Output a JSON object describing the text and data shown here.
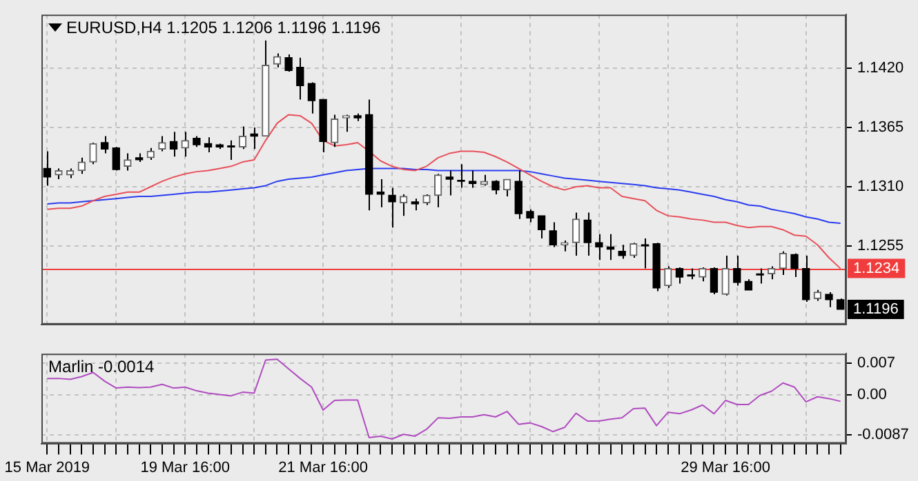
{
  "chart_data": [
    {
      "type": "candlestick",
      "title": "EURUSD,H4 1.1205 1.1206 1.1196 1.1196",
      "categories": [
        null,
        null,
        null,
        null,
        null,
        null,
        null,
        null,
        null,
        null,
        null,
        null,
        null,
        null,
        null,
        null,
        null,
        null,
        null,
        null,
        null,
        null,
        null,
        null,
        null,
        null,
        null,
        null,
        null,
        null,
        null,
        null,
        null,
        null,
        null,
        null,
        null,
        null,
        null,
        null,
        null,
        null,
        null,
        null,
        null,
        null,
        null,
        null,
        null,
        null,
        null,
        null,
        null,
        null,
        null,
        null,
        null,
        null,
        null,
        null,
        null,
        null,
        null,
        null,
        null,
        null,
        null,
        null,
        null,
        null
      ],
      "ohlc": [
        [
          1.1327,
          1.1343,
          1.1311,
          1.1319
        ],
        [
          1.1321,
          1.1327,
          1.1317,
          1.1325
        ],
        [
          1.1321,
          1.1327,
          1.1318,
          1.1325
        ],
        [
          1.1325,
          1.1337,
          1.1322,
          1.1333
        ],
        [
          1.1333,
          1.1351,
          1.1331,
          1.135
        ],
        [
          1.1351,
          1.1357,
          1.1341,
          1.1345
        ],
        [
          1.1346,
          1.1347,
          1.1325,
          1.1326
        ],
        [
          1.1329,
          1.1341,
          1.1325,
          1.1335
        ],
        [
          1.1337,
          1.1341,
          1.1333,
          1.1335
        ],
        [
          1.1337,
          1.1346,
          1.1335,
          1.1343
        ],
        [
          1.1345,
          1.1357,
          1.1343,
          1.1351
        ],
        [
          1.1352,
          1.1361,
          1.1338,
          1.1345
        ],
        [
          1.1346,
          1.1361,
          1.1338,
          1.1353
        ],
        [
          1.1355,
          1.1357,
          1.1347,
          1.1349
        ],
        [
          1.135,
          1.1356,
          1.1342,
          1.1347
        ],
        [
          1.1349,
          1.135,
          1.1345,
          1.1347
        ],
        [
          1.1348,
          1.1353,
          1.1335,
          1.1347
        ],
        [
          1.1347,
          1.1366,
          1.1345,
          1.1357
        ],
        [
          1.1359,
          1.1365,
          1.1345,
          1.1357
        ],
        [
          1.1357,
          1.1446,
          1.1357,
          1.1423
        ],
        [
          1.1424,
          1.1434,
          1.1421,
          1.1431
        ],
        [
          1.143,
          1.1433,
          1.1417,
          1.1418
        ],
        [
          1.1421,
          1.143,
          1.1391,
          1.1404
        ],
        [
          1.1406,
          1.1407,
          1.1378,
          1.139
        ],
        [
          1.1391,
          1.1391,
          1.1342,
          1.1352
        ],
        [
          1.1351,
          1.1377,
          1.1347,
          1.1373
        ],
        [
          1.1374,
          1.1377,
          1.1361,
          1.1376
        ],
        [
          1.1376,
          1.1378,
          1.1371,
          1.1374
        ],
        [
          1.1377,
          1.1391,
          1.1288,
          1.1303
        ],
        [
          1.1305,
          1.1317,
          1.1291,
          1.1303
        ],
        [
          1.1302,
          1.1309,
          1.1272,
          1.1296
        ],
        [
          1.1295,
          1.1303,
          1.1283,
          1.1301
        ],
        [
          1.1296,
          1.1299,
          1.1288,
          1.1294
        ],
        [
          1.1295,
          1.1303,
          1.1293,
          1.1302
        ],
        [
          1.1302,
          1.1322,
          1.1291,
          1.1321
        ],
        [
          1.1319,
          1.1325,
          1.1302,
          1.1317
        ],
        [
          1.1316,
          1.1331,
          1.1309,
          1.1315
        ],
        [
          1.1315,
          1.1325,
          1.1309,
          1.1313
        ],
        [
          1.1312,
          1.1321,
          1.1311,
          1.1315
        ],
        [
          1.1315,
          1.1316,
          1.1303,
          1.1307
        ],
        [
          1.1307,
          1.1317,
          1.1301,
          1.1317
        ],
        [
          1.1315,
          1.1325,
          1.128,
          1.1285
        ],
        [
          1.1287,
          1.1289,
          1.1277,
          1.1281
        ],
        [
          1.1283,
          1.1283,
          1.1262,
          1.127
        ],
        [
          1.1269,
          1.1277,
          1.1254,
          1.1256
        ],
        [
          1.1256,
          1.126,
          1.125,
          1.1258
        ],
        [
          1.1258,
          1.1286,
          1.1246,
          1.128
        ],
        [
          1.1279,
          1.1286,
          1.1246,
          1.1258
        ],
        [
          1.1258,
          1.1266,
          1.1242,
          1.1254
        ],
        [
          1.1254,
          1.1266,
          1.1242,
          1.1252
        ],
        [
          1.125,
          1.1256,
          1.1243,
          1.1246
        ],
        [
          1.1246,
          1.1258,
          1.1244,
          1.1257
        ],
        [
          1.1256,
          1.1262,
          1.1234,
          1.1255
        ],
        [
          1.1257,
          1.1258,
          1.1213,
          1.1216
        ],
        [
          1.1218,
          1.1236,
          1.1216,
          1.1234
        ],
        [
          1.1234,
          1.1235,
          1.122,
          1.1226
        ],
        [
          1.1228,
          1.1234,
          1.1224,
          1.1227
        ],
        [
          1.1226,
          1.1235,
          1.1222,
          1.1234
        ],
        [
          1.1234,
          1.1235,
          1.121,
          1.1212
        ],
        [
          1.121,
          1.1246,
          1.1209,
          1.1234
        ],
        [
          1.1234,
          1.1246,
          1.1218,
          1.1221
        ],
        [
          1.1222,
          1.1224,
          1.1214,
          1.1214
        ],
        [
          1.1229,
          1.1234,
          1.122,
          1.1228
        ],
        [
          1.1229,
          1.1236,
          1.1224,
          1.1234
        ],
        [
          1.1234,
          1.125,
          1.1228,
          1.1248
        ],
        [
          1.1247,
          1.1248,
          1.1226,
          1.1234
        ],
        [
          1.1234,
          1.1246,
          1.1203,
          1.1205
        ],
        [
          1.1206,
          1.1214,
          1.1204,
          1.1212
        ],
        [
          1.121,
          1.1212,
          1.1198,
          1.1205
        ],
        [
          1.1205,
          1.1206,
          1.1196,
          1.1196
        ]
      ],
      "series": [
        {
          "type": "line",
          "color": "#e8505a",
          "values": [
            1.1289,
            1.129,
            1.129,
            1.1292,
            1.1297,
            1.1301,
            1.1303,
            1.1305,
            1.1305,
            1.131,
            1.1315,
            1.1319,
            1.1322,
            1.1324,
            1.1325,
            1.1327,
            1.1329,
            1.1333,
            1.1335,
            1.1353,
            1.1369,
            1.1377,
            1.1376,
            1.1369,
            1.1353,
            1.1348,
            1.1349,
            1.1351,
            1.1343,
            1.1334,
            1.1329,
            1.1326,
            1.1325,
            1.1329,
            1.1337,
            1.1341,
            1.1343,
            1.1343,
            1.1342,
            1.1338,
            1.1333,
            1.1327,
            1.1321,
            1.1315,
            1.131,
            1.1307,
            1.131,
            1.1311,
            1.1309,
            1.1309,
            1.1301,
            1.1299,
            1.1297,
            1.1288,
            1.1283,
            1.1282,
            1.128,
            1.1279,
            1.1277,
            1.1277,
            1.1274,
            1.1272,
            1.1273,
            1.1273,
            1.127,
            1.1265,
            1.1264,
            1.1256,
            1.1244,
            1.1234
          ]
        },
        {
          "type": "line",
          "color": "#2a3cf0",
          "values": [
            1.1294,
            1.1295,
            1.1295,
            1.1296,
            1.1297,
            1.1298,
            1.1299,
            1.13,
            1.1301,
            1.1301,
            1.1302,
            1.1303,
            1.1304,
            1.1305,
            1.1305,
            1.1306,
            1.1307,
            1.1308,
            1.1309,
            1.1311,
            1.1315,
            1.1317,
            1.1318,
            1.1319,
            1.1321,
            1.1323,
            1.1325,
            1.1326,
            1.1327,
            1.1327,
            1.1327,
            1.1327,
            1.1326,
            1.1326,
            1.1325,
            1.1325,
            1.1325,
            1.1325,
            1.1325,
            1.1325,
            1.1325,
            1.1325,
            1.1324,
            1.1322,
            1.132,
            1.1318,
            1.1317,
            1.1316,
            1.1315,
            1.1314,
            1.1313,
            1.1312,
            1.1311,
            1.1309,
            1.1308,
            1.1307,
            1.1305,
            1.1303,
            1.1301,
            1.1298,
            1.1296,
            1.1293,
            1.1292,
            1.1289,
            1.1287,
            1.1285,
            1.1282,
            1.128,
            1.1277,
            1.1276
          ]
        }
      ],
      "ylim": [
        1.1182,
        1.147
      ],
      "yticks": [
        {
          "value": 1.1255,
          "label": "1.1255"
        },
        {
          "value": 1.131,
          "label": "1.1310"
        },
        {
          "value": 1.1365,
          "label": "1.1365"
        },
        {
          "value": 1.142,
          "label": "1.1420"
        }
      ],
      "ref_lines": [
        {
          "axis": "y",
          "value": 1.1234,
          "label": "1.1234",
          "color": "#f03c3c"
        }
      ],
      "annotations": [
        {
          "text": "1.1196",
          "y": 1.1196
        }
      ],
      "grid": true,
      "tick_labels": "y"
    },
    {
      "type": "line",
      "title": "Marlin -0.0014",
      "color": "#b04cc0",
      "categories": [
        "15 Mar 2019",
        null,
        null,
        null,
        null,
        null,
        null,
        null,
        null,
        null,
        null,
        null,
        "19 Mar 16:00",
        null,
        null,
        null,
        null,
        null,
        null,
        null,
        null,
        null,
        null,
        null,
        "21 Mar 16:00",
        null,
        null,
        null,
        null,
        null,
        null,
        null,
        null,
        null,
        null,
        null,
        null,
        null,
        null,
        null,
        null,
        null,
        null,
        null,
        null,
        null,
        null,
        null,
        null,
        null,
        null,
        null,
        null,
        null,
        null,
        null,
        null,
        null,
        null,
        "29 Mar 16:00",
        null,
        null,
        null,
        null,
        null,
        null,
        null,
        null,
        null,
        null
      ],
      "values": [
        0.0036,
        0.0036,
        0.0034,
        0.004,
        0.0049,
        0.003,
        0.0015,
        0.0017,
        0.0016,
        0.0017,
        0.0023,
        0.0015,
        0.0017,
        0.0009,
        0.0004,
        0.0001,
        -0.0002,
        0.0006,
        0.0004,
        0.0076,
        0.0078,
        0.0057,
        0.0036,
        0.0017,
        -0.0033,
        -0.0012,
        -0.0011,
        -0.0011,
        -0.0093,
        -0.009,
        -0.0096,
        -0.0086,
        -0.009,
        -0.0075,
        -0.005,
        -0.0051,
        -0.0048,
        -0.0048,
        -0.0043,
        -0.0048,
        -0.0036,
        -0.0064,
        -0.0061,
        -0.0069,
        -0.008,
        -0.0071,
        -0.004,
        -0.0057,
        -0.0057,
        -0.0053,
        -0.005,
        -0.003,
        -0.0029,
        -0.0067,
        -0.0038,
        -0.0041,
        -0.0033,
        -0.0022,
        -0.0041,
        -0.0012,
        -0.0021,
        -0.0021,
        -0.0001,
        0.0008,
        0.0026,
        0.0017,
        -0.0015,
        -0.0004,
        -0.0008,
        -0.0014
      ],
      "ylim": [
        -0.0106,
        0.009
      ],
      "yticks": [
        -0.0087,
        {
          "value": 0,
          "label": "0.00"
        },
        0.007
      ],
      "grid": true
    }
  ]
}
